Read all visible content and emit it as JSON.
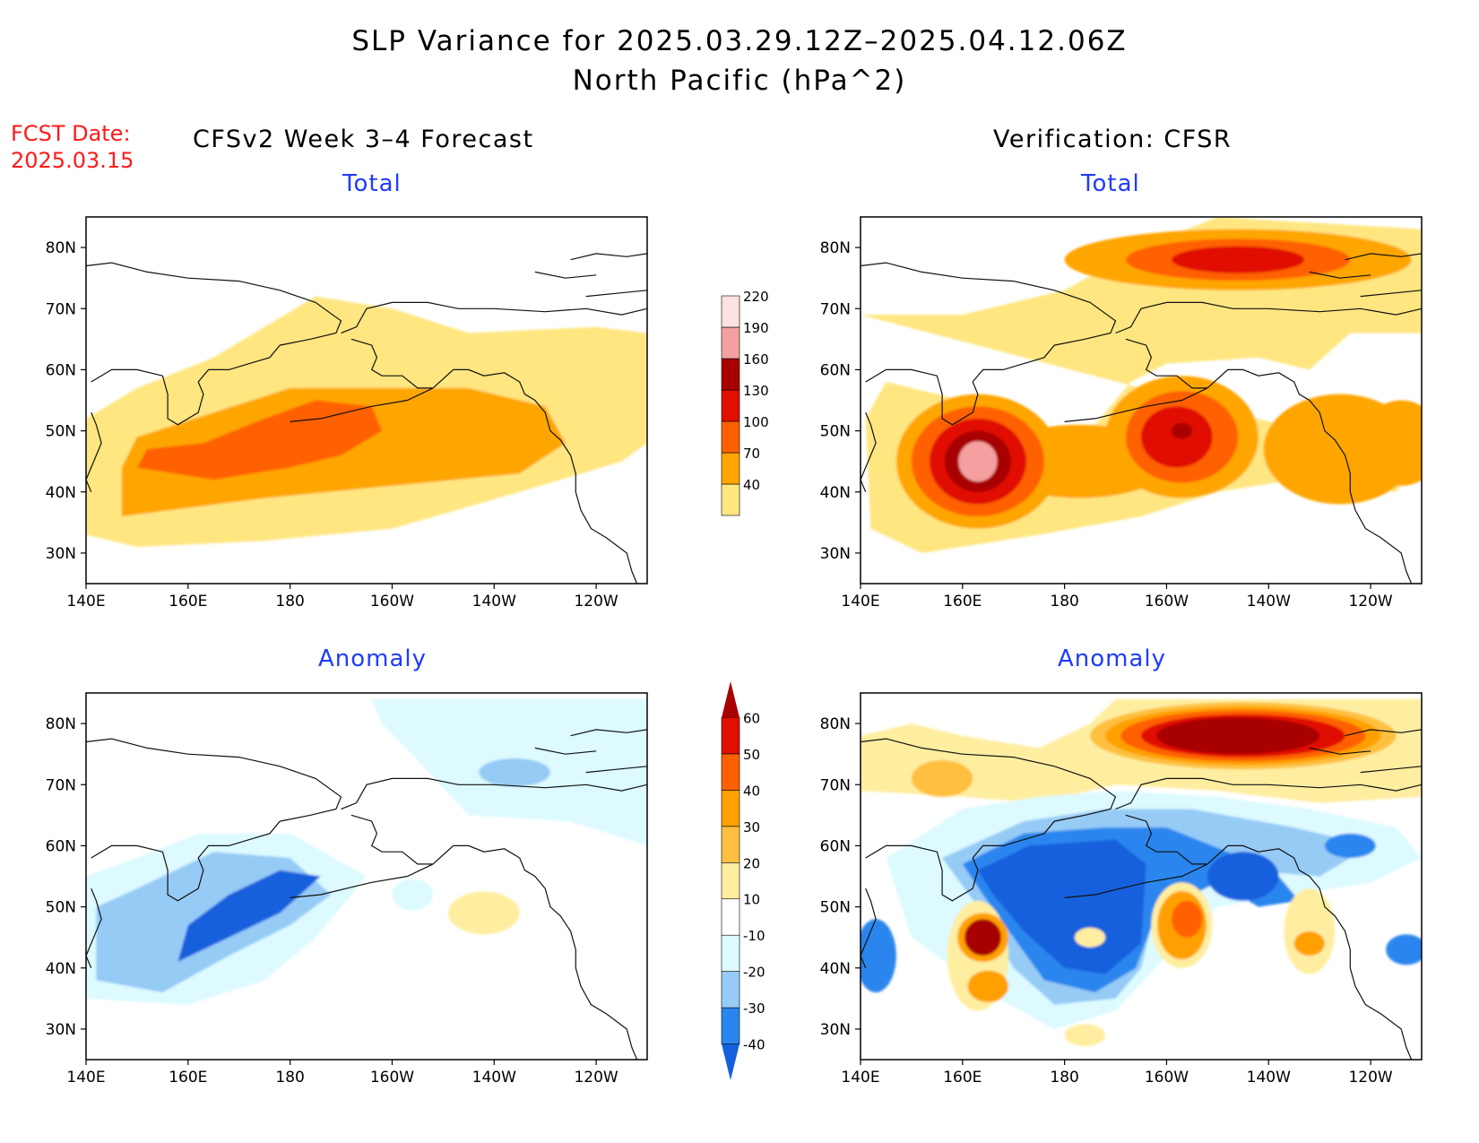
{
  "figure": {
    "title_line1": "SLP Variance for 2025.03.29.12Z–2025.04.12.06Z",
    "title_line2": "North Pacific (hPa^2)",
    "fcst_label": "FCST Date:",
    "fcst_date": "2025.03.15",
    "left_header": "CFSv2 Week 3–4 Forecast",
    "right_header": "Verification: CFSR"
  },
  "panels": {
    "total_label": "Total",
    "anomaly_label": "Anomaly"
  },
  "axes": {
    "lat_ticks": [
      "30N",
      "40N",
      "50N",
      "60N",
      "70N",
      "80N"
    ],
    "lat_values": [
      30,
      40,
      50,
      60,
      70,
      80
    ],
    "lon_ticks": [
      "140E",
      "160E",
      "180",
      "160W",
      "140W",
      "120W"
    ],
    "lon_values": [
      140,
      160,
      180,
      200,
      220,
      240
    ],
    "lon_range": [
      140,
      250
    ],
    "lat_range": [
      25,
      85
    ]
  },
  "colorbars": {
    "total": {
      "labels": [
        "40",
        "70",
        "100",
        "130",
        "160",
        "190",
        "220"
      ],
      "colors": [
        "#ffe680",
        "#ffa500",
        "#ff6000",
        "#e01000",
        "#a80000",
        "#f4a0a0",
        "#fde2e2"
      ]
    },
    "anomaly": {
      "labels": [
        "-40",
        "-30",
        "-20",
        "-10",
        "10",
        "20",
        "30",
        "40",
        "50",
        "60"
      ],
      "colors": [
        "#1460dd",
        "#2a86ee",
        "#96cbf6",
        "#dcfaff",
        "#ffffff",
        "#ffeea0",
        "#ffc040",
        "#ffa000",
        "#ff6000",
        "#e01000",
        "#a80000"
      ]
    }
  },
  "chart_data": [
    {
      "type": "heatmap",
      "panel": "forecast-total",
      "region": "North Pacific",
      "units": "hPa^2",
      "description_values": [
        {
          "lon": 180,
          "lat": 47,
          "value": 110
        },
        {
          "lon": 200,
          "lat": 47,
          "value": 85
        },
        {
          "lon": 220,
          "lat": 50,
          "value": 80
        },
        {
          "lon": 165,
          "lat": 45,
          "value": 95
        }
      ]
    },
    {
      "type": "heatmap",
      "panel": "verification-total",
      "region": "North Pacific",
      "units": "hPa^2",
      "description_values": [
        {
          "lon": 162,
          "lat": 45,
          "value": 225
        },
        {
          "lon": 202,
          "lat": 50,
          "value": 170
        },
        {
          "lon": 215,
          "lat": 78,
          "value": 150
        },
        {
          "lon": 245,
          "lat": 48,
          "value": 80
        }
      ]
    },
    {
      "type": "heatmap",
      "panel": "forecast-anomaly",
      "region": "North Pacific",
      "units": "hPa^2",
      "description_values": [
        {
          "lon": 175,
          "lat": 50,
          "value": -35
        },
        {
          "lon": 225,
          "lat": 72,
          "value": -20
        },
        {
          "lon": 218,
          "lat": 49,
          "value": 15
        }
      ]
    },
    {
      "type": "heatmap",
      "panel": "verification-anomaly",
      "region": "North Pacific",
      "units": "hPa^2",
      "description_values": [
        {
          "lon": 215,
          "lat": 78,
          "value": 65
        },
        {
          "lon": 185,
          "lat": 50,
          "value": -45
        },
        {
          "lon": 164,
          "lat": 45,
          "value": 65
        },
        {
          "lon": 203,
          "lat": 47,
          "value": 40
        },
        {
          "lon": 220,
          "lat": 55,
          "value": -40
        }
      ]
    }
  ]
}
